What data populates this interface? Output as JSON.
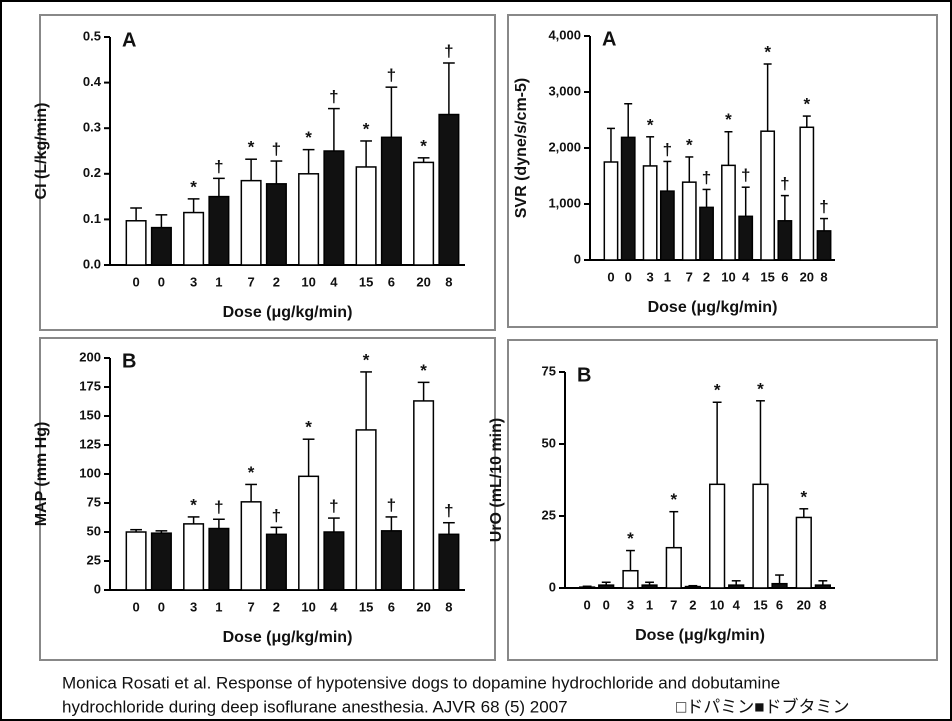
{
  "chart_data": [
    {
      "type": "bar",
      "panel_label": "A",
      "ylabel": "CI (L/kg/min)",
      "xlabel": "Dose (μg/kg/min)",
      "ylim": [
        0,
        0.5
      ],
      "yticks": [
        {
          "value": 0,
          "label": "0.0"
        },
        0.1,
        0.2,
        0.3,
        0.4,
        0.5
      ],
      "series": [
        {
          "color": "#ffffff",
          "doses": [
            "0",
            "3",
            "7",
            "10",
            "15",
            "20"
          ],
          "values": [
            0.097,
            0.115,
            0.185,
            0.2,
            0.215,
            0.225
          ],
          "errors": [
            0.028,
            0.03,
            0.047,
            0.053,
            0.057,
            0.01
          ],
          "markers": [
            null,
            "*",
            "*",
            "*",
            "*",
            "*"
          ]
        },
        {
          "color": "#111111",
          "doses": [
            "0",
            "1",
            "2",
            "4",
            "6",
            "8"
          ],
          "values": [
            0.082,
            0.15,
            0.178,
            0.25,
            0.28,
            0.33
          ],
          "errors": [
            0.028,
            0.04,
            0.05,
            0.093,
            0.11,
            0.113
          ],
          "markers": [
            null,
            "†",
            "†",
            "†",
            "†",
            "†"
          ]
        }
      ]
    },
    {
      "type": "bar",
      "panel_label": "A",
      "ylabel": "SVR (dyne/s/cm-5)",
      "xlabel": "Dose (μg/kg/min)",
      "ylim": [
        0,
        4000
      ],
      "yticks": [
        0,
        {
          "value": 1000,
          "label": "1,000"
        },
        {
          "value": 2000,
          "label": "2,000"
        },
        {
          "value": 3000,
          "label": "3,000"
        },
        {
          "value": 4000,
          "label": "4,000"
        }
      ],
      "series": [
        {
          "color": "#ffffff",
          "doses": [
            "0",
            "3",
            "7",
            "10",
            "15",
            "20"
          ],
          "values": [
            1750,
            1680,
            1390,
            1690,
            2300,
            2370
          ],
          "errors": [
            600,
            520,
            450,
            600,
            1200,
            200
          ],
          "markers": [
            null,
            "*",
            "*",
            "*",
            "*",
            "*"
          ]
        },
        {
          "color": "#111111",
          "doses": [
            "0",
            "1",
            "2",
            "4",
            "6",
            "8"
          ],
          "values": [
            2190,
            1230,
            940,
            780,
            700,
            520
          ],
          "errors": [
            600,
            530,
            320,
            520,
            450,
            220
          ],
          "markers": [
            null,
            "†",
            "†",
            "†",
            "†",
            "†"
          ]
        }
      ]
    },
    {
      "type": "bar",
      "panel_label": "B",
      "ylabel": "MAP (mm Hg)",
      "xlabel": "Dose (μg/kg/min)",
      "ylim": [
        0,
        200
      ],
      "yticks": [
        0,
        25,
        50,
        75,
        100,
        125,
        150,
        175,
        200
      ],
      "series": [
        {
          "color": "#ffffff",
          "doses": [
            "0",
            "3",
            "7",
            "10",
            "15",
            "20"
          ],
          "values": [
            50,
            57,
            76,
            98,
            138,
            163
          ],
          "errors": [
            2,
            6,
            15,
            32,
            50,
            16
          ],
          "markers": [
            null,
            "*",
            "*",
            "*",
            "*",
            "*"
          ]
        },
        {
          "color": "#111111",
          "doses": [
            "0",
            "1",
            "2",
            "4",
            "6",
            "8"
          ],
          "values": [
            49,
            53,
            48,
            50,
            51,
            48
          ],
          "errors": [
            2,
            8,
            6,
            12,
            12,
            10
          ],
          "markers": [
            null,
            "†",
            "†",
            "†",
            "†",
            "†"
          ]
        }
      ]
    },
    {
      "type": "bar",
      "panel_label": "B",
      "ylabel": "UrO (mL/10 min)",
      "xlabel": "Dose (μg/kg/min)",
      "ylim": [
        0,
        75
      ],
      "yticks": [
        0,
        25,
        50,
        75
      ],
      "series": [
        {
          "color": "#ffffff",
          "doses": [
            "0",
            "3",
            "7",
            "10",
            "15",
            "20"
          ],
          "values": [
            0.3,
            6,
            14,
            36,
            36,
            24.5
          ],
          "errors": [
            0.3,
            7,
            12.5,
            28.5,
            29,
            3
          ],
          "markers": [
            null,
            "*",
            "*",
            "*",
            "*",
            "*"
          ]
        },
        {
          "color": "#111111",
          "doses": [
            "0",
            "1",
            "2",
            "4",
            "6",
            "8"
          ],
          "values": [
            1,
            1,
            0.5,
            1,
            1.5,
            1
          ],
          "errors": [
            1,
            1,
            0.3,
            1.5,
            3,
            1.5
          ],
          "markers": [
            null,
            null,
            null,
            null,
            null,
            null
          ]
        }
      ]
    }
  ],
  "caption": [
    "Monica Rosati et al. Response of hypotensive dogs to dopamine hydrochloride and dobutamine",
    "hydrochloride during deep isoflurane anesthesia. AJVR 68 (5) 2007"
  ],
  "legend_text": "□ドパミン■ドブタミン"
}
